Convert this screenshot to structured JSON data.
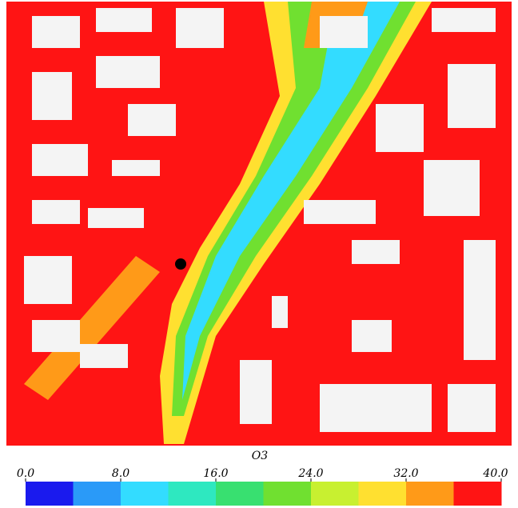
{
  "colorbar": {
    "label": "O3",
    "lim": [
      0,
      40
    ],
    "ticks": [
      {
        "value": 0,
        "label": "0.0"
      },
      {
        "value": 8,
        "label": "8.0"
      },
      {
        "value": 16,
        "label": "16.0"
      },
      {
        "value": 24,
        "label": "24.0"
      },
      {
        "value": 32,
        "label": "32.0"
      },
      {
        "value": 40,
        "label": "40.0"
      }
    ],
    "colors": [
      "#1a1aee",
      "#2a9af8",
      "#33dcff",
      "#2ee8c0",
      "#38e070",
      "#70e030",
      "#c8f030",
      "#ffe030",
      "#ff9a18",
      "#ff1414"
    ]
  }
}
